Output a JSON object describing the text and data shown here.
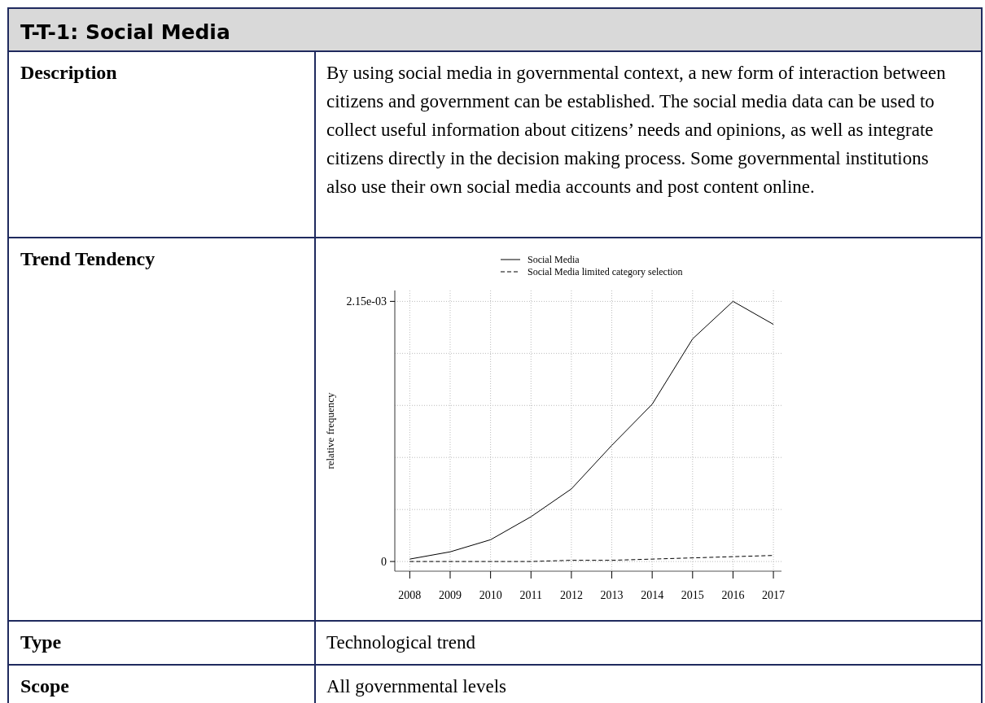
{
  "chart_data": [
    {
      "type": "other",
      "title": "T-T-1: Social Media",
      "annotations": [
        "Description",
        "By using social media in governmental context, a new form of interaction between citizens and government can be established. The social media data can be used to collect useful information about citizens’ needs and opinions, as well as integrate citizens directly in the decision making process. Some governmental institutions also use their own social media accounts and post content online.",
        "Trend Tendency",
        "Type",
        "Technological trend",
        "Scope",
        "All governmental levels"
      ]
    },
    {
      "type": "line",
      "ylabel": "relative frequency",
      "x": [
        2008,
        2009,
        2010,
        2011,
        2012,
        2013,
        2014,
        2015,
        2016,
        2017
      ],
      "series": [
        {
          "name": "Social Media",
          "color": "#000000",
          "line_style": "solid",
          "values": [
            2e-05,
            8e-05,
            0.00018,
            0.00037,
            0.0006,
            0.00096,
            0.0013,
            0.00184,
            0.00215,
            0.00196
          ]
        },
        {
          "name": "Social Media limited category selection",
          "color": "#000000",
          "line_style": "dashed",
          "values": [
            0,
            0,
            0,
            0,
            1e-05,
            1e-05,
            2e-05,
            3e-05,
            4e-05,
            5e-05
          ]
        }
      ],
      "xlim": [
        2007.63,
        2017.2
      ],
      "xticks": [
        2008,
        2009,
        2010,
        2011,
        2012,
        2013,
        2014,
        2015,
        2016,
        2017
      ],
      "ylim": [
        -8e-05,
        0.00224
      ],
      "yticks": [
        0,
        {
          "value": 0.00043,
          "label": null
        },
        {
          "value": 0.00086,
          "label": null
        },
        {
          "value": 0.00129,
          "label": null
        },
        {
          "value": 0.00172,
          "label": null
        },
        {
          "value": 0.00215,
          "label": "2.15e-03"
        }
      ],
      "grid": true,
      "legend": "top",
      "marker": "none"
    }
  ]
}
